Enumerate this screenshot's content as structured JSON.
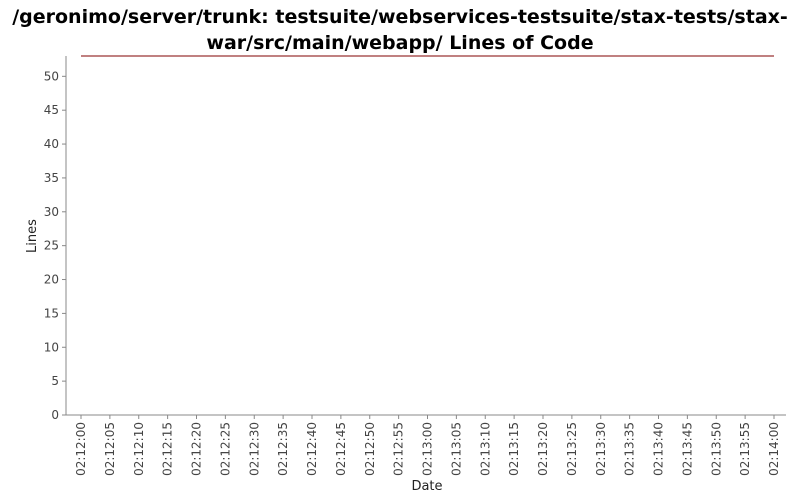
{
  "chart_data": {
    "type": "line",
    "title_lines": [
      "/geronimo/server/trunk: testsuite/webservices-testsuite/stax-tests/stax-",
      "war/src/main/webapp/ Lines of Code"
    ],
    "xlabel": "Date",
    "ylabel": "Lines",
    "ylim": [
      0,
      53
    ],
    "y_ticks": [
      0,
      5,
      10,
      15,
      20,
      25,
      30,
      35,
      40,
      45,
      50
    ],
    "x_ticks": [
      "02:12:00",
      "02:12:05",
      "02:12:10",
      "02:12:15",
      "02:12:20",
      "02:12:25",
      "02:12:30",
      "02:12:35",
      "02:12:40",
      "02:12:45",
      "02:12:50",
      "02:12:55",
      "02:13:00",
      "02:13:05",
      "02:13:10",
      "02:13:15",
      "02:13:20",
      "02:13:25",
      "02:13:30",
      "02:13:35",
      "02:13:40",
      "02:13:45",
      "02:13:50",
      "02:13:55",
      "02:14:00"
    ],
    "grid": false,
    "series": [
      {
        "color": "#800000",
        "x": [
          "02:12:00",
          "02:14:00"
        ],
        "values": [
          53,
          53
        ]
      }
    ]
  }
}
